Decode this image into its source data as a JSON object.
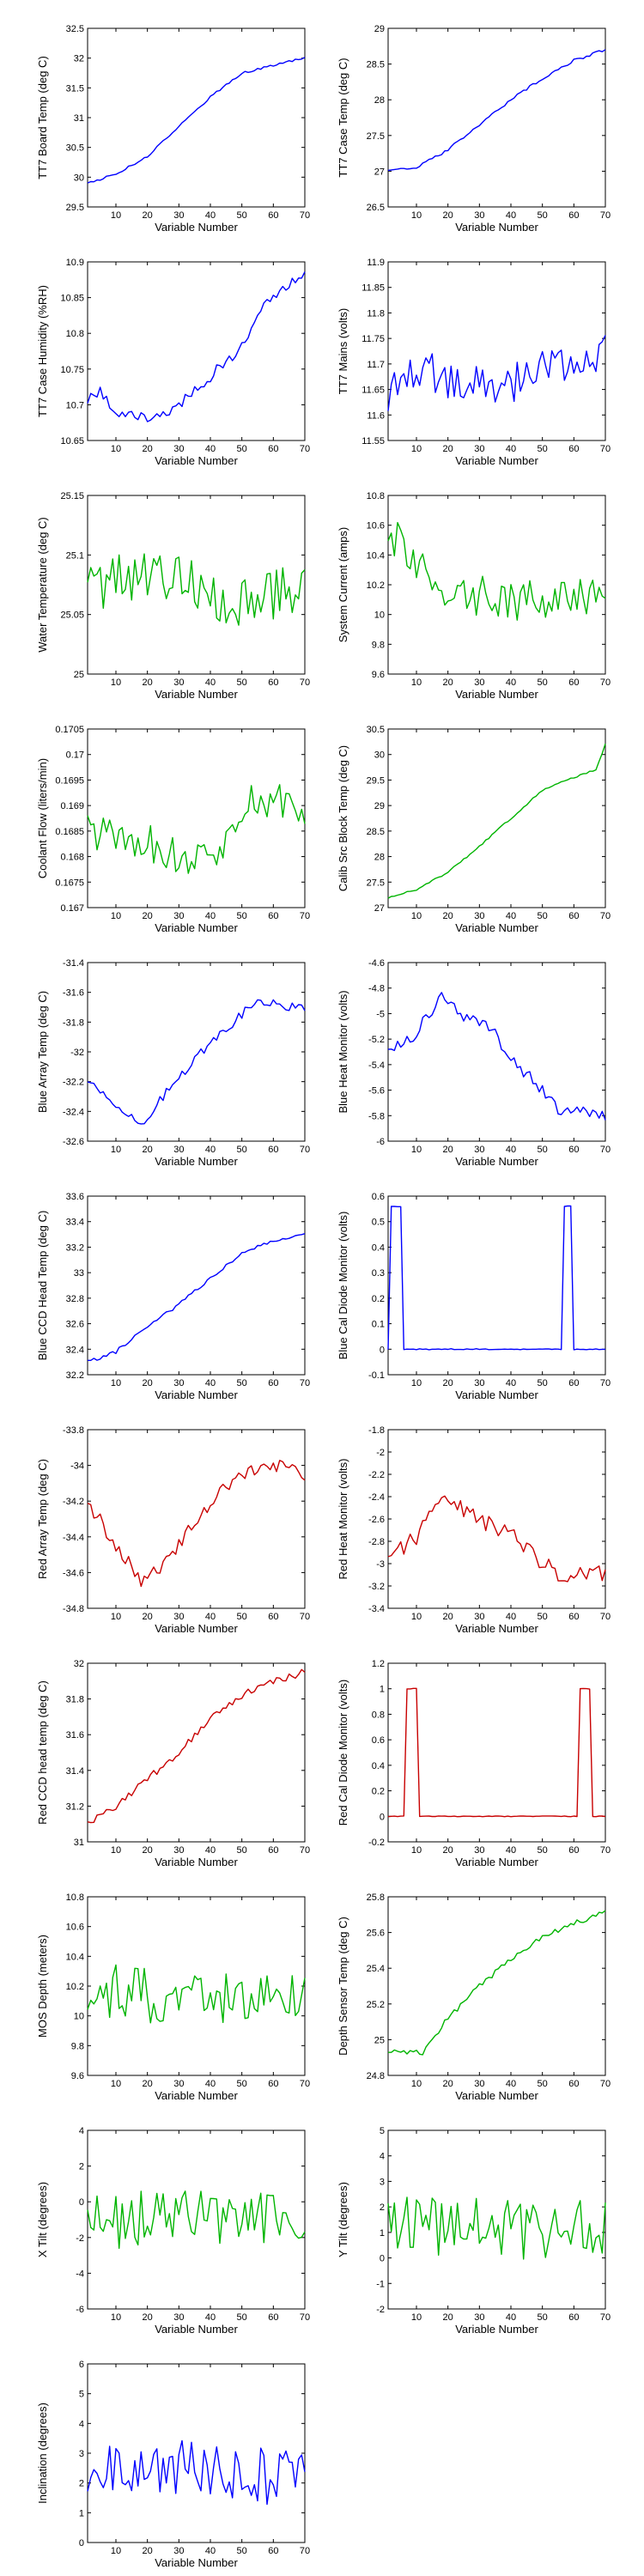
{
  "figure": {
    "title": ""
  },
  "chart_data": [
    {
      "type": "line",
      "row": 0,
      "col": 0,
      "color": "#0000ff",
      "xlabel": "Variable Number",
      "ylabel": "TT7 Board Temp (deg C)",
      "xlim": [
        1,
        70
      ],
      "ylim": [
        29.5,
        32.5
      ],
      "xticks": [
        10,
        20,
        30,
        40,
        50,
        60,
        70
      ],
      "yticks": [
        "29.5",
        "30",
        "30.5",
        "31",
        "31.5",
        "32",
        "32.5"
      ],
      "seed": 1,
      "noise": 0.02,
      "knots": [
        [
          1,
          29.9
        ],
        [
          10,
          30.05
        ],
        [
          20,
          30.35
        ],
        [
          30,
          30.85
        ],
        [
          40,
          31.35
        ],
        [
          50,
          31.75
        ],
        [
          60,
          31.88
        ],
        [
          70,
          32.0
        ]
      ]
    },
    {
      "type": "line",
      "row": 0,
      "col": 1,
      "color": "#0000ff",
      "xlabel": "Variable Number",
      "ylabel": "TT7 Case Temp (deg C)",
      "xlim": [
        1,
        70
      ],
      "ylim": [
        26.5,
        29
      ],
      "xticks": [
        10,
        20,
        30,
        40,
        50,
        60,
        70
      ],
      "yticks": [
        "26.5",
        "27",
        "27.5",
        "28",
        "28.5",
        "29"
      ],
      "seed": 2,
      "noise": 0.02,
      "knots": [
        [
          1,
          27.0
        ],
        [
          10,
          27.05
        ],
        [
          20,
          27.3
        ],
        [
          30,
          27.65
        ],
        [
          40,
          28.0
        ],
        [
          50,
          28.3
        ],
        [
          60,
          28.55
        ],
        [
          70,
          28.7
        ]
      ]
    },
    {
      "type": "line",
      "row": 1,
      "col": 0,
      "color": "#0000ff",
      "xlabel": "Variable Number",
      "ylabel": "TT7 Case Humidity (%RH)",
      "xlim": [
        1,
        70
      ],
      "ylim": [
        10.65,
        10.9
      ],
      "xticks": [
        10,
        20,
        30,
        40,
        50,
        60,
        70
      ],
      "yticks": [
        "10.65",
        "10.7",
        "10.75",
        "10.8",
        "10.85",
        "10.9"
      ],
      "seed": 3,
      "noise": 0.008,
      "knots": [
        [
          1,
          10.71
        ],
        [
          5,
          10.72
        ],
        [
          10,
          10.69
        ],
        [
          20,
          10.68
        ],
        [
          28,
          10.69
        ],
        [
          30,
          10.7
        ],
        [
          38,
          10.73
        ],
        [
          42,
          10.75
        ],
        [
          50,
          10.78
        ],
        [
          55,
          10.83
        ],
        [
          62,
          10.86
        ],
        [
          68,
          10.88
        ],
        [
          70,
          10.89
        ]
      ]
    },
    {
      "type": "line",
      "row": 1,
      "col": 1,
      "color": "#0000ff",
      "xlabel": "Variable Number",
      "ylabel": "TT7 Mains  (volts)",
      "xlim": [
        1,
        70
      ],
      "ylim": [
        11.55,
        11.9
      ],
      "xticks": [
        10,
        20,
        30,
        40,
        50,
        60,
        70
      ],
      "yticks": [
        "11.55",
        "11.6",
        "11.65",
        "11.7",
        "11.75",
        "11.8",
        "11.85",
        "11.9"
      ],
      "seed": 4,
      "noise": 0.04,
      "knots": [
        [
          1,
          11.63
        ],
        [
          10,
          11.7
        ],
        [
          20,
          11.66
        ],
        [
          30,
          11.67
        ],
        [
          40,
          11.66
        ],
        [
          50,
          11.69
        ],
        [
          60,
          11.7
        ],
        [
          70,
          11.72
        ]
      ]
    },
    {
      "type": "line",
      "row": 2,
      "col": 0,
      "color": "#00b400",
      "xlabel": "Variable Number",
      "ylabel": "Water Temperature (deg C)",
      "xlim": [
        1,
        70
      ],
      "ylim": [
        25,
        25.15
      ],
      "xticks": [
        10,
        20,
        30,
        40,
        50,
        60,
        70
      ],
      "yticks": [
        "25",
        "25.05",
        "25.1",
        "25.15"
      ],
      "seed": 5,
      "noise": 0.025,
      "knots": [
        [
          1,
          25.08
        ],
        [
          20,
          25.08
        ],
        [
          40,
          25.07
        ],
        [
          55,
          25.06
        ],
        [
          70,
          25.08
        ]
      ]
    },
    {
      "type": "line",
      "row": 2,
      "col": 1,
      "color": "#00b400",
      "xlabel": "Variable Number",
      "ylabel": "System Current (amps)",
      "xlim": [
        1,
        70
      ],
      "ylim": [
        9.6,
        10.8
      ],
      "xticks": [
        10,
        20,
        30,
        40,
        50,
        60,
        70
      ],
      "yticks": [
        "9.6",
        "9.8",
        "10",
        "10.2",
        "10.4",
        "10.6",
        "10.8"
      ],
      "seed": 6,
      "noise": 0.14,
      "knots": [
        [
          1,
          10.45
        ],
        [
          5,
          10.55
        ],
        [
          10,
          10.3
        ],
        [
          20,
          10.15
        ],
        [
          40,
          10.1
        ],
        [
          60,
          10.1
        ],
        [
          70,
          10.15
        ]
      ]
    },
    {
      "type": "line",
      "row": 3,
      "col": 0,
      "color": "#00b400",
      "xlabel": "Variable Number",
      "ylabel": "Coolant Flow (liters/min)",
      "xlim": [
        1,
        70
      ],
      "ylim": [
        0.167,
        0.1705
      ],
      "xticks": [
        10,
        20,
        30,
        40,
        50,
        60,
        70
      ],
      "yticks": [
        "0.167",
        "0.1675",
        "0.168",
        "0.1685",
        "0.169",
        "0.1695",
        "0.17",
        "0.1705"
      ],
      "seed": 7,
      "noise": 0.0004,
      "knots": [
        [
          1,
          0.1685
        ],
        [
          20,
          0.1683
        ],
        [
          35,
          0.1678
        ],
        [
          45,
          0.1683
        ],
        [
          55,
          0.1692
        ],
        [
          70,
          0.169
        ]
      ]
    },
    {
      "type": "line",
      "row": 3,
      "col": 1,
      "color": "#00b400",
      "xlabel": "Variable Number",
      "ylabel": "Calib Src Block Temp (deg C)",
      "xlim": [
        1,
        70
      ],
      "ylim": [
        27,
        30.5
      ],
      "xticks": [
        10,
        20,
        30,
        40,
        50,
        60,
        70
      ],
      "yticks": [
        "27",
        "27.5",
        "28",
        "28.5",
        "29",
        "29.5",
        "30",
        "30.5"
      ],
      "seed": 8,
      "noise": 0.02,
      "knots": [
        [
          1,
          27.2
        ],
        [
          10,
          27.35
        ],
        [
          20,
          27.7
        ],
        [
          30,
          28.2
        ],
        [
          40,
          28.75
        ],
        [
          50,
          29.3
        ],
        [
          60,
          29.55
        ],
        [
          67,
          29.7
        ],
        [
          70,
          30.2
        ]
      ]
    },
    {
      "type": "line",
      "row": 4,
      "col": 0,
      "color": "#0000ff",
      "xlabel": "Variable Number",
      "ylabel": "Blue Array Temp (deg C)",
      "xlim": [
        1,
        70
      ],
      "ylim": [
        -32.6,
        -31.4
      ],
      "xticks": [
        10,
        20,
        30,
        40,
        50,
        60,
        70
      ],
      "yticks": [
        "-32.6",
        "-32.4",
        "-32.2",
        "-32",
        "-31.8",
        "-31.6",
        "-31.4"
      ],
      "seed": 9,
      "noise": 0.03,
      "knots": [
        [
          1,
          -32.2
        ],
        [
          10,
          -32.35
        ],
        [
          18,
          -32.5
        ],
        [
          25,
          -32.3
        ],
        [
          35,
          -32.05
        ],
        [
          45,
          -31.85
        ],
        [
          55,
          -31.65
        ],
        [
          70,
          -31.72
        ]
      ]
    },
    {
      "type": "line",
      "row": 4,
      "col": 1,
      "color": "#0000ff",
      "xlabel": "Variable Number",
      "ylabel": "Blue Heat Monitor (volts)",
      "xlim": [
        1,
        70
      ],
      "ylim": [
        -6,
        -4.6
      ],
      "xticks": [
        10,
        20,
        30,
        40,
        50,
        60,
        70
      ],
      "yticks": [
        "-6",
        "-5.8",
        "-5.6",
        "-5.4",
        "-5.2",
        "-5",
        "-4.8",
        "-4.6"
      ],
      "seed": 10,
      "noise": 0.05,
      "knots": [
        [
          1,
          -5.3
        ],
        [
          10,
          -5.15
        ],
        [
          18,
          -4.85
        ],
        [
          25,
          -5.05
        ],
        [
          32,
          -5.05
        ],
        [
          40,
          -5.35
        ],
        [
          48,
          -5.55
        ],
        [
          55,
          -5.75
        ],
        [
          70,
          -5.8
        ]
      ]
    },
    {
      "type": "line",
      "row": 5,
      "col": 0,
      "color": "#0000ff",
      "xlabel": "Variable Number",
      "ylabel": "Blue CCD Head Temp (deg C)",
      "xlim": [
        1,
        70
      ],
      "ylim": [
        32.2,
        33.6
      ],
      "xticks": [
        10,
        20,
        30,
        40,
        50,
        60,
        70
      ],
      "yticks": [
        "32.2",
        "32.4",
        "32.6",
        "32.8",
        "33",
        "33.2",
        "33.4",
        "33.6"
      ],
      "seed": 11,
      "noise": 0.015,
      "knots": [
        [
          1,
          32.3
        ],
        [
          10,
          32.38
        ],
        [
          20,
          32.58
        ],
        [
          30,
          32.75
        ],
        [
          40,
          32.95
        ],
        [
          50,
          33.15
        ],
        [
          60,
          33.25
        ],
        [
          70,
          33.3
        ]
      ]
    },
    {
      "type": "line",
      "row": 5,
      "col": 1,
      "color": "#0000ff",
      "xlabel": "Variable Number",
      "ylabel": "Blue Cal Diode Monitor (volts)",
      "xlim": [
        1,
        70
      ],
      "ylim": [
        -0.1,
        0.6
      ],
      "xticks": [
        10,
        20,
        30,
        40,
        50,
        60,
        70
      ],
      "yticks": [
        "-0.1",
        "0",
        "0.1",
        "0.2",
        "0.3",
        "0.4",
        "0.5",
        "0.6"
      ],
      "seed": 12,
      "noise": 0.004,
      "pulses": [
        [
          2,
          5
        ],
        [
          57,
          59
        ]
      ],
      "high": 0.56,
      "low": 0.0
    },
    {
      "type": "line",
      "row": 6,
      "col": 0,
      "color": "#c80000",
      "xlabel": "Variable Number",
      "ylabel": "Red Array Temp (deg C)",
      "xlim": [
        1,
        70
      ],
      "ylim": [
        -34.8,
        -33.8
      ],
      "xticks": [
        10,
        20,
        30,
        40,
        50,
        60,
        70
      ],
      "yticks": [
        "-34.8",
        "-34.6",
        "-34.4",
        "-34.2",
        "-34",
        "-33.8"
      ],
      "seed": 13,
      "noise": 0.04,
      "knots": [
        [
          1,
          -34.2
        ],
        [
          10,
          -34.45
        ],
        [
          18,
          -34.65
        ],
        [
          25,
          -34.55
        ],
        [
          32,
          -34.4
        ],
        [
          40,
          -34.2
        ],
        [
          50,
          -34.05
        ],
        [
          60,
          -34.0
        ],
        [
          70,
          -34.05
        ]
      ]
    },
    {
      "type": "line",
      "row": 6,
      "col": 1,
      "color": "#c80000",
      "xlabel": "Variable Number",
      "ylabel": "Red Heat Monitor (volts)",
      "xlim": [
        1,
        70
      ],
      "ylim": [
        -3.4,
        -1.8
      ],
      "xticks": [
        10,
        20,
        30,
        40,
        50,
        60,
        70
      ],
      "yticks": [
        "-3.4",
        "-3.2",
        "-3",
        "-2.8",
        "-2.6",
        "-2.4",
        "-2.2",
        "-2",
        "-1.8"
      ],
      "seed": 14,
      "noise": 0.08,
      "knots": [
        [
          1,
          -2.95
        ],
        [
          10,
          -2.75
        ],
        [
          20,
          -2.4
        ],
        [
          30,
          -2.6
        ],
        [
          40,
          -2.75
        ],
        [
          48,
          -2.95
        ],
        [
          55,
          -3.1
        ],
        [
          70,
          -3.1
        ]
      ]
    },
    {
      "type": "line",
      "row": 7,
      "col": 0,
      "color": "#c80000",
      "xlabel": "Variable Number",
      "ylabel": "Red CCD head temp (deg C)",
      "xlim": [
        1,
        70
      ],
      "ylim": [
        31,
        32
      ],
      "xticks": [
        10,
        20,
        30,
        40,
        50,
        60,
        70
      ],
      "yticks": [
        "31",
        "31.2",
        "31.4",
        "31.6",
        "31.8",
        "32"
      ],
      "seed": 15,
      "noise": 0.02,
      "knots": [
        [
          1,
          31.1
        ],
        [
          10,
          31.2
        ],
        [
          20,
          31.35
        ],
        [
          30,
          31.5
        ],
        [
          40,
          31.7
        ],
        [
          50,
          31.82
        ],
        [
          60,
          31.9
        ],
        [
          70,
          31.95
        ]
      ]
    },
    {
      "type": "line",
      "row": 7,
      "col": 1,
      "color": "#c80000",
      "xlabel": "Variable Number",
      "ylabel": "Red Cal Diode Monitor (volts)",
      "xlim": [
        1,
        70
      ],
      "ylim": [
        -0.2,
        1.2
      ],
      "xticks": [
        10,
        20,
        30,
        40,
        50,
        60,
        70
      ],
      "yticks": [
        "-0.2",
        "0",
        "0.2",
        "0.4",
        "0.6",
        "0.8",
        "1",
        "1.2"
      ],
      "seed": 16,
      "noise": 0.006,
      "pulses": [
        [
          7,
          10
        ],
        [
          62,
          65
        ]
      ],
      "high": 1.0,
      "low": 0.0
    },
    {
      "type": "line",
      "row": 8,
      "col": 0,
      "color": "#00b400",
      "xlabel": "Variable Number",
      "ylabel": "MOS Depth  (meters)",
      "xlim": [
        1,
        70
      ],
      "ylim": [
        9.6,
        10.8
      ],
      "xticks": [
        10,
        20,
        30,
        40,
        50,
        60,
        70
      ],
      "yticks": [
        "9.6",
        "9.8",
        "10",
        "10.2",
        "10.4",
        "10.6",
        "10.8"
      ],
      "seed": 17,
      "noise": 0.2,
      "knots": [
        [
          1,
          10.15
        ],
        [
          20,
          10.15
        ],
        [
          40,
          10.1
        ],
        [
          60,
          10.15
        ],
        [
          70,
          10.1
        ]
      ]
    },
    {
      "type": "line",
      "row": 8,
      "col": 1,
      "color": "#00b400",
      "xlabel": "Variable Number",
      "ylabel": "Depth Sensor Temp (deg C)",
      "xlim": [
        1,
        70
      ],
      "ylim": [
        24.8,
        25.8
      ],
      "xticks": [
        10,
        20,
        30,
        40,
        50,
        60,
        70
      ],
      "yticks": [
        "24.8",
        "25",
        "25.2",
        "25.4",
        "25.6",
        "25.8"
      ],
      "seed": 18,
      "noise": 0.015,
      "knots": [
        [
          1,
          24.93
        ],
        [
          12,
          24.93
        ],
        [
          20,
          25.12
        ],
        [
          30,
          25.3
        ],
        [
          40,
          25.45
        ],
        [
          50,
          25.58
        ],
        [
          60,
          25.65
        ],
        [
          70,
          25.72
        ]
      ]
    },
    {
      "type": "line",
      "row": 9,
      "col": 0,
      "color": "#00b400",
      "xlabel": "Variable Number",
      "ylabel": "X Tilt  (degrees)",
      "xlim": [
        1,
        70
      ],
      "ylim": [
        -6,
        4
      ],
      "xticks": [
        10,
        20,
        30,
        40,
        50,
        60,
        70
      ],
      "yticks": [
        "-6",
        "-4",
        "-2",
        "0",
        "2",
        "4"
      ],
      "seed": 19,
      "noise": 1.6,
      "knots": [
        [
          1,
          -1
        ],
        [
          35,
          -1
        ],
        [
          70,
          -1
        ]
      ]
    },
    {
      "type": "line",
      "row": 9,
      "col": 1,
      "color": "#00b400",
      "xlabel": "Variable Number",
      "ylabel": "Y Tilt  (degrees)",
      "xlim": [
        1,
        70
      ],
      "ylim": [
        -2,
        5
      ],
      "xticks": [
        10,
        20,
        30,
        40,
        50,
        60,
        70
      ],
      "yticks": [
        "-2",
        "-1",
        "0",
        "1",
        "2",
        "3",
        "4",
        "5"
      ],
      "seed": 20,
      "noise": 1.2,
      "knots": [
        [
          1,
          1.2
        ],
        [
          35,
          1.2
        ],
        [
          70,
          1.0
        ]
      ]
    },
    {
      "type": "line",
      "row": 10,
      "col": 0,
      "color": "#0000ff",
      "xlabel": "Variable Number",
      "ylabel": "Inclination  (degrees)",
      "xlim": [
        1,
        70
      ],
      "ylim": [
        0,
        6
      ],
      "xticks": [
        10,
        20,
        30,
        40,
        50,
        60,
        70
      ],
      "yticks": [
        "0",
        "1",
        "2",
        "3",
        "4",
        "5",
        "6"
      ],
      "seed": 21,
      "noise": 1.0,
      "knots": [
        [
          1,
          2.5
        ],
        [
          35,
          2.5
        ],
        [
          70,
          2.0
        ]
      ]
    }
  ]
}
